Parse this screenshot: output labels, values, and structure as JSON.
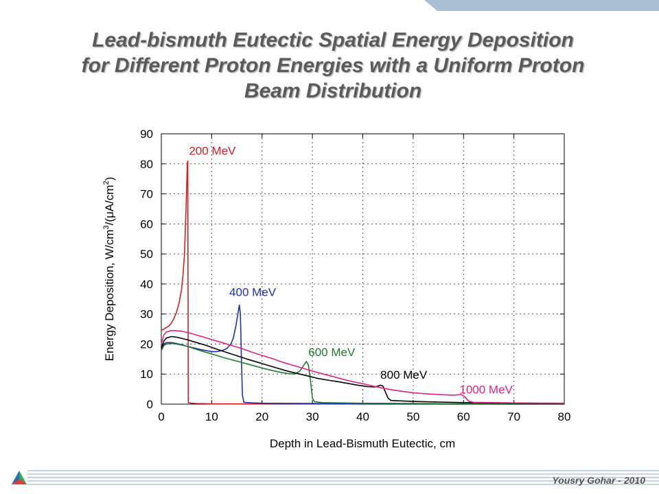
{
  "slide": {
    "title_lines": [
      "Lead-bismuth Eutectic Spatial Energy Deposition",
      "for Different Proton Energies with a Uniform Proton",
      "Beam Distribution"
    ],
    "author": "Yousry Gohar - 2010"
  },
  "chart_data": {
    "type": "line",
    "title": "",
    "xlabel": "Depth in Lead-Bismuth Eutectic, cm",
    "ylabel_parts": [
      "Energy Deposition, W/cm",
      "3",
      "/(",
      "μ",
      "A/cm",
      "2",
      ")"
    ],
    "xlim": [
      0,
      80
    ],
    "ylim": [
      0,
      90
    ],
    "xticks": [
      "0",
      "10",
      "20",
      "30",
      "40",
      "50",
      "60",
      "70",
      "80"
    ],
    "yticks": [
      "0",
      "10",
      "20",
      "30",
      "40",
      "50",
      "60",
      "70",
      "80",
      "90"
    ],
    "grid": true,
    "series": [
      {
        "name": "200 MeV",
        "color": "#d21f1f",
        "points": [
          [
            0,
            24.5
          ],
          [
            0.5,
            25
          ],
          [
            1,
            25.5
          ],
          [
            1.5,
            26
          ],
          [
            2,
            27
          ],
          [
            2.5,
            28.5
          ],
          [
            3,
            30.5
          ],
          [
            3.5,
            33.5
          ],
          [
            4,
            38
          ],
          [
            4.3,
            43
          ],
          [
            4.6,
            50
          ],
          [
            4.8,
            60
          ],
          [
            5.0,
            70
          ],
          [
            5.15,
            80
          ],
          [
            5.25,
            81
          ],
          [
            5.3,
            40
          ],
          [
            5.35,
            0.5
          ],
          [
            6,
            0.3
          ],
          [
            7,
            0.2
          ],
          [
            10,
            0.1
          ],
          [
            20,
            0.05
          ],
          [
            40,
            0.02
          ],
          [
            60,
            0.01
          ],
          [
            80,
            0
          ]
        ],
        "label_pos": [
          5.5,
          83
        ]
      },
      {
        "name": "400 MeV",
        "color": "#1f2fb5",
        "points": [
          [
            0,
            18
          ],
          [
            0.5,
            20
          ],
          [
            1,
            20.5
          ],
          [
            2,
            20.5
          ],
          [
            3,
            20.2
          ],
          [
            4,
            19.8
          ],
          [
            5,
            19.3
          ],
          [
            6,
            18.9
          ],
          [
            7,
            18.5
          ],
          [
            8,
            18.1
          ],
          [
            9,
            17.8
          ],
          [
            10,
            17.5
          ],
          [
            11,
            17.5
          ],
          [
            12,
            17.8
          ],
          [
            13,
            18.5
          ],
          [
            13.8,
            20
          ],
          [
            14.3,
            22
          ],
          [
            14.8,
            26
          ],
          [
            15.2,
            30
          ],
          [
            15.5,
            33
          ],
          [
            15.7,
            30
          ],
          [
            15.9,
            15
          ],
          [
            16.1,
            3
          ],
          [
            16.4,
            0.6
          ],
          [
            18,
            0.4
          ],
          [
            20,
            0.3
          ],
          [
            30,
            0.2
          ],
          [
            40,
            0.1
          ],
          [
            60,
            0.05
          ],
          [
            80,
            0
          ]
        ],
        "label_pos": [
          13.5,
          36
        ]
      },
      {
        "name": "600 MeV",
        "color": "#1e7a2e",
        "points": [
          [
            0,
            17.8
          ],
          [
            0.5,
            19.5
          ],
          [
            1,
            20
          ],
          [
            2,
            20.2
          ],
          [
            3,
            20
          ],
          [
            5,
            19.3
          ],
          [
            7,
            18.2
          ],
          [
            9,
            17.2
          ],
          [
            11,
            16.2
          ],
          [
            13,
            15.2
          ],
          [
            15,
            14.3
          ],
          [
            17,
            13.4
          ],
          [
            19,
            12.5
          ],
          [
            21,
            11.6
          ],
          [
            23,
            10.8
          ],
          [
            25,
            10.2
          ],
          [
            26.5,
            10
          ],
          [
            27.5,
            11
          ],
          [
            28.3,
            13
          ],
          [
            28.8,
            14.2
          ],
          [
            29.2,
            13
          ],
          [
            29.6,
            8
          ],
          [
            30,
            2
          ],
          [
            30.4,
            0.8
          ],
          [
            32,
            0.5
          ],
          [
            40,
            0.3
          ],
          [
            50,
            0.2
          ],
          [
            60,
            0.1
          ],
          [
            80,
            0
          ]
        ],
        "label_pos": [
          29.2,
          16
        ]
      },
      {
        "name": "800 MeV",
        "color": "#000000",
        "points": [
          [
            0,
            18.5
          ],
          [
            0.5,
            21
          ],
          [
            1,
            22
          ],
          [
            2,
            22.5
          ],
          [
            3,
            22.3
          ],
          [
            5,
            21.5
          ],
          [
            7,
            20.5
          ],
          [
            9,
            19.5
          ],
          [
            11,
            18.3
          ],
          [
            13,
            17.2
          ],
          [
            15,
            16.1
          ],
          [
            17,
            15
          ],
          [
            19,
            14
          ],
          [
            21,
            13
          ],
          [
            23,
            12
          ],
          [
            25,
            11
          ],
          [
            27,
            10.2
          ],
          [
            29,
            9.4
          ],
          [
            31,
            8.6
          ],
          [
            33,
            8
          ],
          [
            35,
            7.5
          ],
          [
            37,
            6.9
          ],
          [
            39,
            6.3
          ],
          [
            41,
            5.8
          ],
          [
            42.5,
            5.7
          ],
          [
            43.5,
            6.3
          ],
          [
            44,
            6
          ],
          [
            44.5,
            4
          ],
          [
            45,
            2
          ],
          [
            45.6,
            1.2
          ],
          [
            50,
            0.9
          ],
          [
            60,
            0.5
          ],
          [
            70,
            0.3
          ],
          [
            80,
            0.2
          ]
        ],
        "label_pos": [
          43.5,
          8.5
        ]
      },
      {
        "name": "1000 MeV",
        "color": "#e0208a",
        "points": [
          [
            0,
            20
          ],
          [
            0.5,
            23
          ],
          [
            1,
            24
          ],
          [
            2,
            24.5
          ],
          [
            4,
            24.3
          ],
          [
            6,
            23.5
          ],
          [
            8,
            22.5
          ],
          [
            10,
            21.5
          ],
          [
            12,
            20.5
          ],
          [
            14,
            19.5
          ],
          [
            16,
            18.5
          ],
          [
            18,
            17.3
          ],
          [
            20,
            16.2
          ],
          [
            22,
            15.2
          ],
          [
            24,
            14
          ],
          [
            26,
            13
          ],
          [
            28,
            12
          ],
          [
            30,
            11
          ],
          [
            32,
            10.1
          ],
          [
            34,
            9.2
          ],
          [
            36,
            8.3
          ],
          [
            38,
            7.5
          ],
          [
            40,
            6.8
          ],
          [
            42,
            6
          ],
          [
            44,
            5.3
          ],
          [
            46,
            4.7
          ],
          [
            48,
            4.2
          ],
          [
            50,
            3.8
          ],
          [
            52,
            3.5
          ],
          [
            54,
            3.3
          ],
          [
            56,
            3.1
          ],
          [
            58,
            3
          ],
          [
            59.5,
            3.2
          ],
          [
            60.2,
            2.5
          ],
          [
            61,
            1
          ],
          [
            62,
            0.6
          ],
          [
            70,
            0.4
          ],
          [
            80,
            0.3
          ]
        ],
        "label_pos": [
          59.2,
          3.5
        ]
      }
    ]
  }
}
